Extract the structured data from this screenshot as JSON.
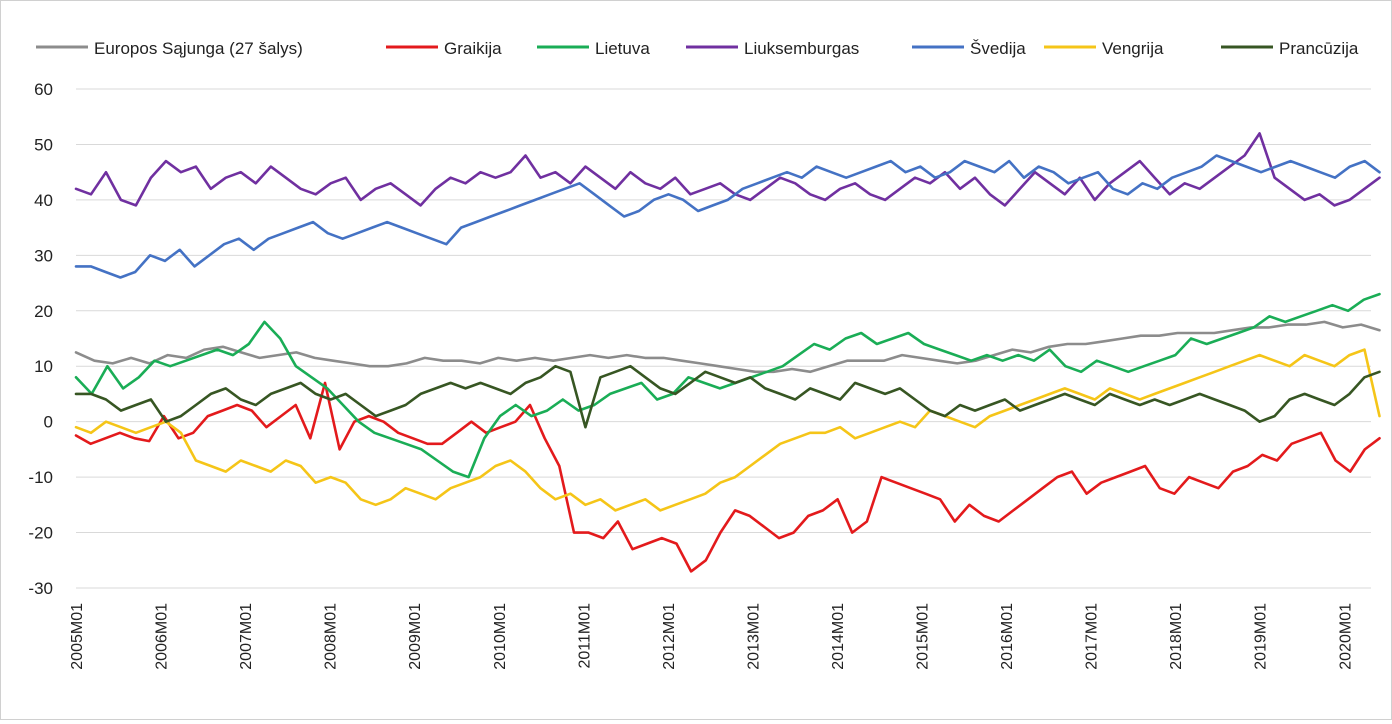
{
  "chart_data": {
    "type": "line",
    "title": "",
    "xlabel": "",
    "ylabel": "",
    "ylim": [
      -30,
      60
    ],
    "y_ticks": [
      -30,
      -20,
      -10,
      0,
      10,
      20,
      30,
      40,
      50,
      60
    ],
    "grid": "horizontal",
    "legend_position": "top",
    "x_labels": [
      "2005M01",
      "2006M01",
      "2007M01",
      "2008M01",
      "2009M01",
      "2010M01",
      "2011M01",
      "2012M01",
      "2013M01",
      "2014M01",
      "2015M01",
      "2016M01",
      "2017M01",
      "2018M01",
      "2019M01",
      "2020M01"
    ],
    "x_start": "2005M01",
    "x_end": "2020M06",
    "series": [
      {
        "name": "Europos Sąjunga (27 šalys)",
        "color": "#8c8c8c",
        "values": [
          12.5,
          11,
          10.5,
          11.5,
          10.5,
          12,
          11.5,
          13,
          13.5,
          12.5,
          11.5,
          12,
          12.5,
          11.5,
          11,
          10.5,
          10,
          10,
          10.5,
          11.5,
          11,
          11,
          10.5,
          11.5,
          11,
          11.5,
          11,
          11.5,
          12,
          11.5,
          12,
          11.5,
          11.5,
          11,
          10.5,
          10,
          9.5,
          9,
          9,
          9.5,
          9,
          10,
          11,
          11,
          11,
          12,
          11.5,
          11,
          10.5,
          11,
          12,
          13,
          12.5,
          13.5,
          14,
          14,
          14.5,
          15,
          15.5,
          15.5,
          16,
          16,
          16,
          16.5,
          17,
          17,
          17.5,
          17.5,
          18,
          17,
          17.5,
          16.5
        ]
      },
      {
        "name": "Graikija",
        "color": "#e31a1c",
        "values": [
          -2.5,
          -4,
          -3,
          -2,
          -3,
          -3.5,
          1,
          -3,
          -2,
          1,
          2,
          3,
          2,
          -1,
          1,
          3,
          -3,
          7,
          -5,
          0,
          1,
          0,
          -2,
          -3,
          -4,
          -4,
          -2,
          0,
          -2,
          -1,
          0,
          3,
          -3,
          -8,
          -20,
          -20,
          -21,
          -18,
          -23,
          -22,
          -21,
          -22,
          -27,
          -25,
          -20,
          -16,
          -17,
          -19,
          -21,
          -20,
          -17,
          -16,
          -14,
          -20,
          -18,
          -10,
          -11,
          -12,
          -13,
          -14,
          -18,
          -15,
          -17,
          -18,
          -16,
          -14,
          -12,
          -10,
          -9,
          -13,
          -11,
          -10,
          -9,
          -8,
          -12,
          -13,
          -10,
          -11,
          -12,
          -9,
          -8,
          -6,
          -7,
          -4,
          -3,
          -2,
          -7,
          -9,
          -5,
          -3
        ]
      },
      {
        "name": "Lietuva",
        "color": "#1aad56",
        "values": [
          8,
          5,
          10,
          6,
          8,
          11,
          10,
          11,
          12,
          13,
          12,
          14,
          18,
          15,
          10,
          8,
          6,
          3,
          0,
          -2,
          -3,
          -4,
          -5,
          -7,
          -9,
          -10,
          -3,
          1,
          3,
          1,
          2,
          4,
          2,
          3,
          5,
          6,
          7,
          4,
          5,
          8,
          7,
          6,
          7,
          8,
          9,
          10,
          12,
          14,
          13,
          15,
          16,
          14,
          15,
          16,
          14,
          13,
          12,
          11,
          12,
          11,
          12,
          11,
          13,
          10,
          9,
          11,
          10,
          9,
          10,
          11,
          12,
          15,
          14,
          15,
          16,
          17,
          19,
          18,
          19,
          20,
          21,
          20,
          22,
          23
        ]
      },
      {
        "name": "Liuksemburgas",
        "color": "#7030a0",
        "values": [
          42,
          41,
          45,
          40,
          39,
          44,
          47,
          45,
          46,
          42,
          44,
          45,
          43,
          46,
          44,
          42,
          41,
          43,
          44,
          40,
          42,
          43,
          41,
          39,
          42,
          44,
          43,
          45,
          44,
          45,
          48,
          44,
          45,
          43,
          46,
          44,
          42,
          45,
          43,
          42,
          44,
          41,
          42,
          43,
          41,
          40,
          42,
          44,
          43,
          41,
          40,
          42,
          43,
          41,
          40,
          42,
          44,
          43,
          45,
          42,
          44,
          41,
          39,
          42,
          45,
          43,
          41,
          44,
          40,
          43,
          45,
          47,
          44,
          41,
          43,
          42,
          44,
          46,
          48,
          52,
          44,
          42,
          40,
          41,
          39,
          40,
          42,
          44
        ]
      },
      {
        "name": "Švedija",
        "color": "#4472c4",
        "values": [
          28,
          28,
          27,
          26,
          27,
          30,
          29,
          31,
          28,
          30,
          32,
          33,
          31,
          33,
          34,
          35,
          36,
          34,
          33,
          34,
          35,
          36,
          35,
          34,
          33,
          32,
          35,
          36,
          37,
          38,
          39,
          40,
          41,
          42,
          43,
          41,
          39,
          37,
          38,
          40,
          41,
          40,
          38,
          39,
          40,
          42,
          43,
          44,
          45,
          44,
          46,
          45,
          44,
          45,
          46,
          47,
          45,
          46,
          44,
          45,
          47,
          46,
          45,
          47,
          44,
          46,
          45,
          43,
          44,
          45,
          42,
          41,
          43,
          42,
          44,
          45,
          46,
          48,
          47,
          46,
          45,
          46,
          47,
          46,
          45,
          44,
          46,
          47,
          45
        ]
      },
      {
        "name": "Vengrija",
        "color": "#f5c518",
        "values": [
          -1,
          -2,
          0,
          -1,
          -2,
          -1,
          0,
          -2,
          -7,
          -8,
          -9,
          -7,
          -8,
          -9,
          -7,
          -8,
          -11,
          -10,
          -11,
          -14,
          -15,
          -14,
          -12,
          -13,
          -14,
          -12,
          -11,
          -10,
          -8,
          -7,
          -9,
          -12,
          -14,
          -13,
          -15,
          -14,
          -16,
          -15,
          -14,
          -16,
          -15,
          -14,
          -13,
          -11,
          -10,
          -8,
          -6,
          -4,
          -3,
          -2,
          -2,
          -1,
          -3,
          -2,
          -1,
          0,
          -1,
          2,
          1,
          0,
          -1,
          1,
          2,
          3,
          4,
          5,
          6,
          5,
          4,
          6,
          5,
          4,
          5,
          6,
          7,
          8,
          9,
          10,
          11,
          12,
          11,
          10,
          12,
          11,
          10,
          12,
          13,
          1
        ]
      },
      {
        "name": "Prancūzija",
        "color": "#375623",
        "values": [
          5,
          5,
          4,
          2,
          3,
          4,
          0,
          1,
          3,
          5,
          6,
          4,
          3,
          5,
          6,
          7,
          5,
          4,
          5,
          3,
          1,
          2,
          3,
          5,
          6,
          7,
          6,
          7,
          6,
          5,
          7,
          8,
          10,
          9,
          -1,
          8,
          9,
          10,
          8,
          6,
          5,
          7,
          9,
          8,
          7,
          8,
          6,
          5,
          4,
          6,
          5,
          4,
          7,
          6,
          5,
          6,
          4,
          2,
          1,
          3,
          2,
          3,
          4,
          2,
          3,
          4,
          5,
          4,
          3,
          5,
          4,
          3,
          4,
          3,
          4,
          5,
          4,
          3,
          2,
          0,
          1,
          4,
          5,
          4,
          3,
          5,
          8,
          9
        ]
      }
    ]
  }
}
